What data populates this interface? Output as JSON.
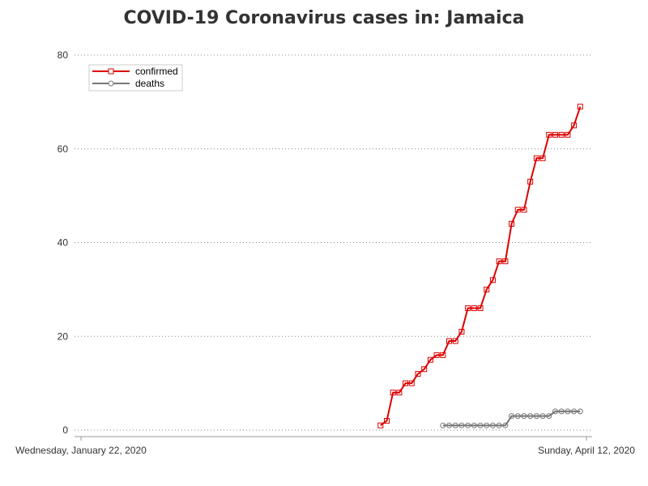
{
  "chart_data": {
    "type": "line",
    "title": "COVID-19 Coronavirus cases in: Jamaica",
    "xlabel": "",
    "ylabel": "",
    "x_range": [
      "2020-01-22",
      "2020-04-12"
    ],
    "x_tick_labels": [
      "Wednesday, January 22, 2020",
      "Sunday, April 12, 2020"
    ],
    "ylim": [
      0,
      80
    ],
    "y_ticks": [
      0,
      20,
      40,
      60,
      80
    ],
    "grid": "horizontal dotted",
    "legend_position": "top-left",
    "series": [
      {
        "name": "confirmed",
        "color": "#dd0000",
        "marker": "square",
        "points": [
          [
            "2020-03-10",
            1
          ],
          [
            "2020-03-11",
            2
          ],
          [
            "2020-03-12",
            8
          ],
          [
            "2020-03-13",
            8
          ],
          [
            "2020-03-14",
            10
          ],
          [
            "2020-03-15",
            10
          ],
          [
            "2020-03-16",
            12
          ],
          [
            "2020-03-17",
            13
          ],
          [
            "2020-03-18",
            15
          ],
          [
            "2020-03-19",
            16
          ],
          [
            "2020-03-20",
            16
          ],
          [
            "2020-03-21",
            19
          ],
          [
            "2020-03-22",
            19
          ],
          [
            "2020-03-23",
            21
          ],
          [
            "2020-03-24",
            26
          ],
          [
            "2020-03-25",
            26
          ],
          [
            "2020-03-26",
            26
          ],
          [
            "2020-03-27",
            30
          ],
          [
            "2020-03-28",
            32
          ],
          [
            "2020-03-29",
            36
          ],
          [
            "2020-03-30",
            36
          ],
          [
            "2020-03-31",
            44
          ],
          [
            "2020-04-01",
            47
          ],
          [
            "2020-04-02",
            47
          ],
          [
            "2020-04-03",
            53
          ],
          [
            "2020-04-04",
            58
          ],
          [
            "2020-04-05",
            58
          ],
          [
            "2020-04-06",
            63
          ],
          [
            "2020-04-07",
            63
          ],
          [
            "2020-04-08",
            63
          ],
          [
            "2020-04-09",
            63
          ],
          [
            "2020-04-10",
            65
          ],
          [
            "2020-04-11",
            69
          ]
        ]
      },
      {
        "name": "deaths",
        "color": "#777777",
        "marker": "circle",
        "points": [
          [
            "2020-03-20",
            1
          ],
          [
            "2020-03-21",
            1
          ],
          [
            "2020-03-22",
            1
          ],
          [
            "2020-03-23",
            1
          ],
          [
            "2020-03-24",
            1
          ],
          [
            "2020-03-25",
            1
          ],
          [
            "2020-03-26",
            1
          ],
          [
            "2020-03-27",
            1
          ],
          [
            "2020-03-28",
            1
          ],
          [
            "2020-03-29",
            1
          ],
          [
            "2020-03-30",
            1
          ],
          [
            "2020-03-31",
            3
          ],
          [
            "2020-04-01",
            3
          ],
          [
            "2020-04-02",
            3
          ],
          [
            "2020-04-03",
            3
          ],
          [
            "2020-04-04",
            3
          ],
          [
            "2020-04-05",
            3
          ],
          [
            "2020-04-06",
            3
          ],
          [
            "2020-04-07",
            4
          ],
          [
            "2020-04-08",
            4
          ],
          [
            "2020-04-09",
            4
          ],
          [
            "2020-04-10",
            4
          ],
          [
            "2020-04-11",
            4
          ]
        ]
      }
    ]
  }
}
